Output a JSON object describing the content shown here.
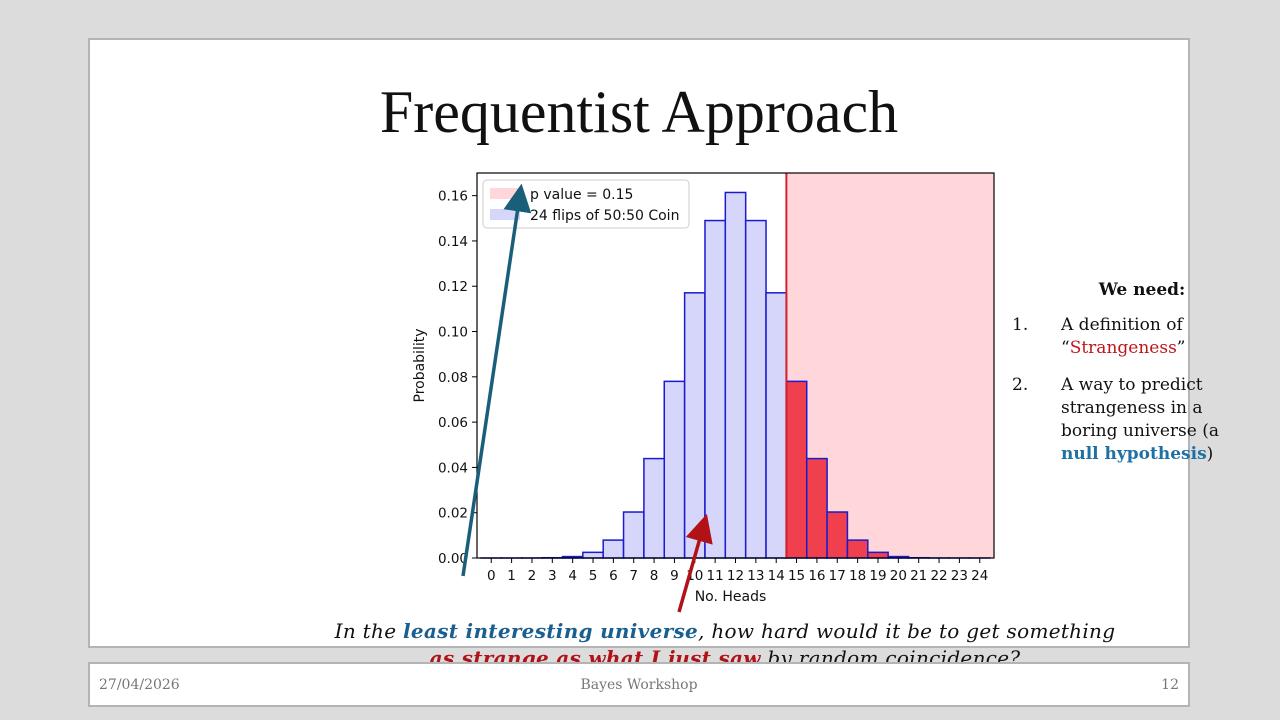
{
  "slide": {
    "title": "Frequentist Approach"
  },
  "chart_data": {
    "type": "bar",
    "title": "",
    "xlabel": "No. Heads",
    "ylabel": "Probability",
    "categories": [
      "0",
      "1",
      "2",
      "3",
      "4",
      "5",
      "6",
      "7",
      "8",
      "9",
      "10",
      "11",
      "12",
      "13",
      "14",
      "15",
      "16",
      "17",
      "18",
      "19",
      "20",
      "21",
      "22",
      "23",
      "24"
    ],
    "series": [
      {
        "name": "24 flips of 50:50 Coin",
        "values": [
          1e-07,
          1.4e-06,
          1.6e-05,
          0.00012,
          0.00063,
          0.0025,
          0.0079,
          0.0203,
          0.0439,
          0.078,
          0.1171,
          0.149,
          0.1614,
          0.149,
          0.1171,
          0.078,
          0.0439,
          0.0203,
          0.0079,
          0.0025,
          0.00063,
          0.00012,
          1.6e-05,
          1.4e-06,
          1e-07
        ]
      }
    ],
    "highlight": {
      "name": "p value = 0.15",
      "from_x": 15,
      "color": "#f0404e",
      "shade_color": "#ffd6d9"
    },
    "bar_color": "#d6d6fb",
    "bar_edge_color": "#1a1ad0",
    "ylim": [
      0,
      0.17
    ],
    "yticks": [
      "0.00",
      "0.02",
      "0.04",
      "0.06",
      "0.08",
      "0.10",
      "0.12",
      "0.14",
      "0.16"
    ],
    "legend_position": "top-left",
    "grid": false
  },
  "needs": {
    "heading": "We need:",
    "item1": {
      "num": "1.",
      "text_a": "A definition of",
      "quote_open": "“",
      "highlight": "Strangeness",
      "quote_close": "”"
    },
    "item2": {
      "num": "2.",
      "text_a": "A way to predict strangeness in a boring universe (a",
      "highlight": "null hypothesis",
      "text_b": ")"
    }
  },
  "caption": {
    "part1": "In the ",
    "blue": "least interesting universe",
    "part2": ", how hard would it be to get something ",
    "red": "as strange as what I just saw",
    "part3": " by random coincidence?"
  },
  "footer": {
    "date": "27/04/2026",
    "center": "Bayes Workshop",
    "page": "12"
  },
  "colors": {
    "arrow_blue": "#1a5f7a",
    "arrow_red": "#b01218"
  }
}
